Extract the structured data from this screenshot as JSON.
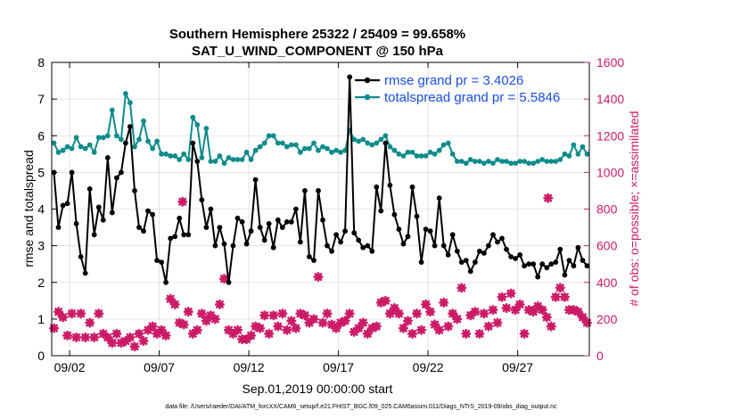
{
  "chart_data": {
    "type": "line",
    "title": "Southern Hemisphere 25322 / 25409 = 99.658%",
    "subtitle": "SAT_U_WIND_COMPONENT @ 150 hPa",
    "xlabel": "Sep.01,2019 00:00:00 start",
    "ylabel_left": "rmse and totalspread",
    "ylabel_right": "# of obs: o=possible; ×=assimilated",
    "xlim": [
      1,
      31
    ],
    "ylim_left": [
      0,
      8
    ],
    "ylim_right": [
      0,
      1600
    ],
    "x_tick_values": [
      2,
      7,
      12,
      17,
      22,
      27
    ],
    "x_tick_labels": [
      "09/02",
      "09/07",
      "09/12",
      "09/17",
      "09/22",
      "09/27"
    ],
    "y_ticks_left": [
      "0",
      "1",
      "2",
      "3",
      "4",
      "5",
      "6",
      "7",
      "8"
    ],
    "y_ticks_right": [
      "0",
      "200",
      "400",
      "600",
      "800",
      "1000",
      "1200",
      "1400",
      "1600"
    ],
    "x_start": 1.125,
    "x_step": 0.25,
    "series": [
      {
        "name": "rmse",
        "legend": "rmse grand pr = 3.4026",
        "color": "#000000",
        "axis": "left",
        "values": [
          5.0,
          3.5,
          4.1,
          4.15,
          5.0,
          3.6,
          2.7,
          2.25,
          4.55,
          3.3,
          4.05,
          3.7,
          5.4,
          3.9,
          4.85,
          5.0,
          5.8,
          6.25,
          4.5,
          3.5,
          3.4,
          3.95,
          3.85,
          2.6,
          2.55,
          2.0,
          3.2,
          3.25,
          3.75,
          3.3,
          3.3,
          5.8,
          5.3,
          4.25,
          3.5,
          4.0,
          3.0,
          3.5,
          3.05,
          2.0,
          3.0,
          3.75,
          3.65,
          3.05,
          3.4,
          4.8,
          3.5,
          3.15,
          3.6,
          2.95,
          3.7,
          3.5,
          3.65,
          3.65,
          4.0,
          3.1,
          4.5,
          2.7,
          2.6,
          4.5,
          3.7,
          3.0,
          2.85,
          3.3,
          3.1,
          3.4,
          7.6,
          3.35,
          3.15,
          2.95,
          3.0,
          2.85,
          4.6,
          3.95,
          5.8,
          4.65,
          3.85,
          3.45,
          3.05,
          3.25,
          4.6,
          3.8,
          2.55,
          3.45,
          3.4,
          3.0,
          4.3,
          3.0,
          2.75,
          3.3,
          2.85,
          2.55,
          2.6,
          2.3,
          2.55,
          2.85,
          2.8,
          3.0,
          3.3,
          3.1,
          3.2,
          2.9,
          2.7,
          2.65,
          2.75,
          2.45,
          2.5,
          2.5,
          2.15,
          2.5,
          2.4,
          2.5,
          2.55,
          2.9,
          2.2,
          2.6,
          2.45,
          2.95,
          2.6,
          2.45,
          4.6,
          2.95,
          2.9,
          3.15,
          3.6,
          3.0,
          3.55,
          3.45,
          2.7
        ]
      },
      {
        "name": "totalspread",
        "legend": "totalspread grand pr = 5.5846",
        "color": "#0e8b8b",
        "axis": "left",
        "values": [
          5.8,
          5.55,
          5.6,
          5.7,
          5.65,
          5.95,
          5.7,
          5.65,
          5.75,
          5.55,
          5.95,
          5.95,
          6.0,
          6.7,
          6.0,
          5.9,
          7.15,
          6.9,
          5.7,
          5.9,
          6.4,
          5.85,
          5.65,
          5.85,
          5.5,
          5.5,
          5.45,
          5.45,
          5.35,
          5.5,
          5.35,
          6.5,
          6.3,
          5.4,
          6.2,
          5.3,
          5.3,
          5.45,
          5.25,
          5.4,
          5.35,
          5.35,
          5.35,
          5.55,
          5.35,
          5.6,
          5.7,
          5.8,
          6.0,
          6.0,
          5.8,
          5.8,
          5.7,
          5.75,
          5.75,
          5.55,
          5.65,
          5.65,
          5.8,
          5.6,
          5.7,
          5.65,
          5.55,
          5.6,
          5.55,
          5.6,
          6.15,
          5.9,
          5.85,
          5.9,
          5.8,
          5.75,
          5.8,
          5.9,
          6.0,
          5.7,
          5.6,
          5.5,
          5.45,
          5.55,
          5.55,
          5.45,
          5.45,
          5.45,
          5.55,
          5.5,
          5.6,
          5.75,
          5.8,
          5.5,
          5.3,
          5.3,
          5.25,
          5.35,
          5.3,
          5.3,
          5.25,
          5.3,
          5.25,
          5.35,
          5.3,
          5.3,
          5.25,
          5.25,
          5.3,
          5.3,
          5.25,
          5.25,
          5.3,
          5.35,
          5.3,
          5.3,
          5.3,
          5.35,
          5.5,
          5.45,
          5.75,
          5.5,
          5.7,
          5.5,
          5.6,
          5.5,
          5.8,
          5.4,
          5.65,
          5.35,
          5.5,
          5.45,
          5.6,
          5.45,
          5.7
        ]
      },
      {
        "name": "assimilated_count",
        "color": "#cc1a66",
        "axis": "right",
        "marker": "x",
        "values": [
          150,
          240,
          210,
          110,
          230,
          100,
          230,
          100,
          180,
          100,
          230,
          120,
          100,
          70,
          120,
          70,
          80,
          100,
          50,
          120,
          80,
          140,
          160,
          120,
          140,
          110,
          310,
          280,
          180,
          170,
          240,
          120,
          140,
          230,
          190,
          220,
          200,
          280,
          420,
          140,
          120,
          140,
          90,
          90,
          110,
          160,
          150,
          220,
          120,
          220,
          160,
          230,
          140,
          190,
          150,
          230,
          220,
          180,
          200,
          430,
          180,
          230,
          170,
          150,
          180,
          190,
          230,
          130,
          150,
          180,
          120,
          150,
          160,
          290,
          300,
          230,
          260,
          230,
          150,
          190,
          120,
          230,
          140,
          280,
          240,
          170,
          140,
          290,
          160,
          230,
          200,
          370,
          120,
          220,
          240,
          120,
          230,
          160,
          250,
          180,
          320,
          260,
          340,
          250,
          280,
          120,
          250,
          240,
          270,
          250,
          210,
          160,
          320,
          370,
          320,
          250,
          250,
          240,
          210,
          180,
          350,
          360,
          250,
          300,
          350,
          220,
          150,
          200,
          180,
          120,
          180,
          140,
          20
        ]
      }
    ],
    "outlier_points": [
      {
        "name": "outlier-1",
        "x": 8.3,
        "y": 840
      },
      {
        "name": "outlier-2",
        "x": 28.7,
        "y": 860
      }
    ]
  },
  "footer": {
    "data_file": "data file: /Users/raeder/DAI/ATM_forcXX/CAM6_setup/f.e21.FHIST_BGC.f09_025.CAM6assim.011/Diags_NTrS_2019-09/obs_diag_output.nc"
  }
}
